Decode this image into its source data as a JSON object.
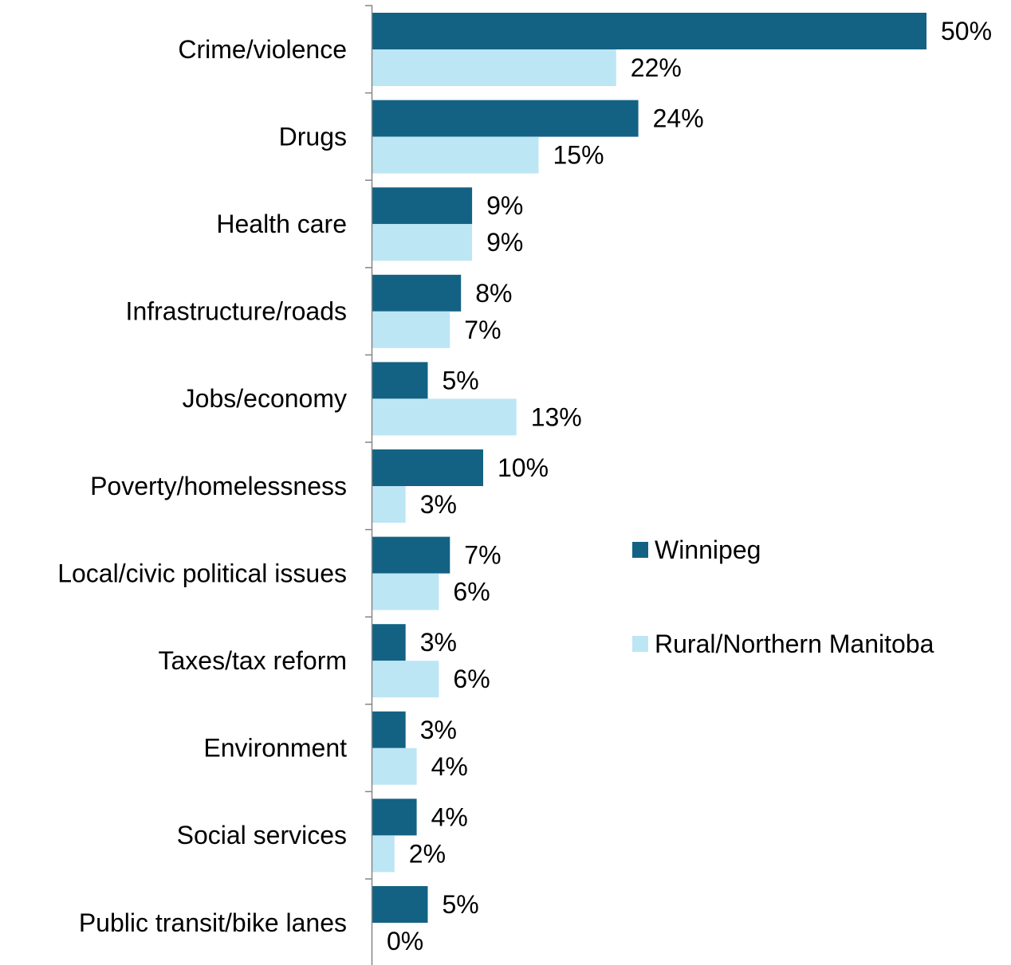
{
  "chart_data": {
    "type": "bar",
    "orientation": "horizontal",
    "categories": [
      "Crime/violence",
      "Drugs",
      "Health care",
      "Infrastructure/roads",
      "Jobs/economy",
      "Poverty/homelessness",
      "Local/civic political issues",
      "Taxes/tax reform",
      "Environment",
      "Social services",
      "Public transit/bike lanes"
    ],
    "series": [
      {
        "name": "Winnipeg",
        "color": "#136283",
        "values": [
          50,
          24,
          9,
          8,
          5,
          10,
          7,
          3,
          3,
          4,
          5
        ],
        "labels": [
          "50%",
          "24%",
          "9%",
          "8%",
          "5%",
          "10%",
          "7%",
          "3%",
          "3%",
          "4%",
          "5%"
        ]
      },
      {
        "name": "Rural/Northern Manitoba",
        "color": "#bde6f5",
        "values": [
          22,
          15,
          9,
          7,
          13,
          3,
          6,
          6,
          4,
          2,
          0
        ],
        "labels": [
          "22%",
          "15%",
          "9%",
          "7%",
          "13%",
          "3%",
          "6%",
          "6%",
          "4%",
          "2%",
          "0%"
        ]
      }
    ],
    "xlim": [
      0,
      50
    ],
    "grid": false,
    "legend_position": "right"
  }
}
